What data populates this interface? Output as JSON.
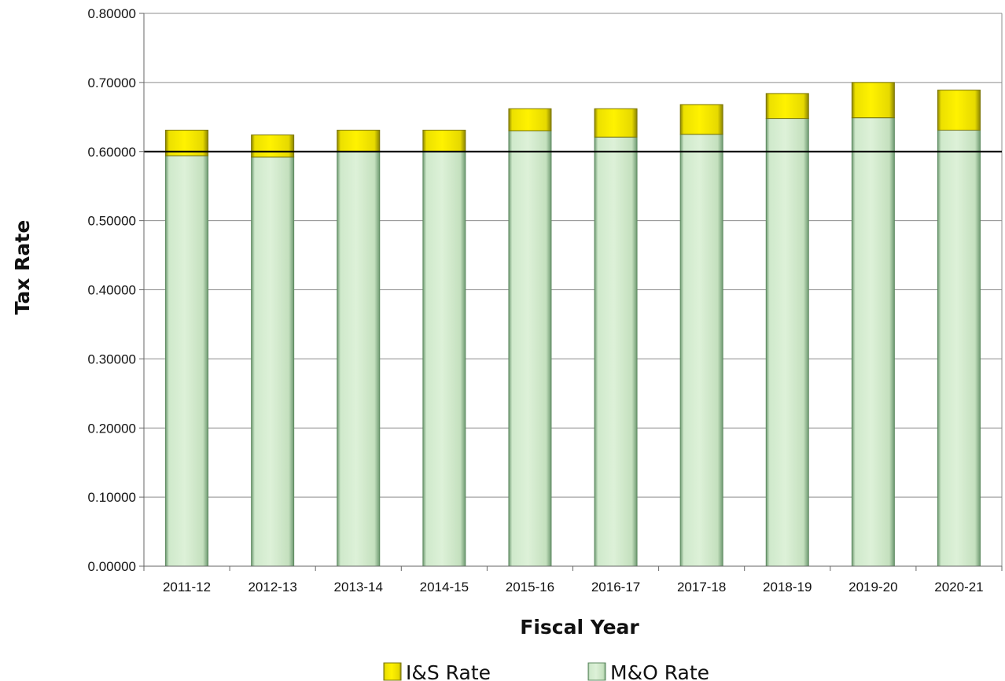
{
  "chart_data": {
    "type": "bar",
    "stacked": true,
    "categories": [
      "2011-12",
      "2012-13",
      "2013-14",
      "2014-15",
      "2015-16",
      "2016-17",
      "2017-18",
      "2018-19",
      "2019-20",
      "2020-21"
    ],
    "series": [
      {
        "name": "M&O Rate",
        "color": "#cdebc6",
        "values": [
          0.594,
          0.592,
          0.6,
          0.6,
          0.63,
          0.621,
          0.625,
          0.648,
          0.649,
          0.631
        ]
      },
      {
        "name": "I&S Rate",
        "color": "#f2e200",
        "values": [
          0.037,
          0.032,
          0.031,
          0.031,
          0.032,
          0.041,
          0.043,
          0.036,
          0.051,
          0.058
        ]
      }
    ],
    "xlabel": "Fiscal Year",
    "ylabel": "Tax Rate",
    "ylim": [
      0,
      0.8
    ],
    "yticks": [
      "0.00000",
      "0.10000",
      "0.20000",
      "0.30000",
      "0.40000",
      "0.50000",
      "0.60000",
      "0.70000",
      "0.80000"
    ],
    "reference_line": 0.6,
    "grid": true,
    "legend": [
      "I&S Rate",
      "M&O Rate"
    ],
    "legend_position": "bottom"
  }
}
